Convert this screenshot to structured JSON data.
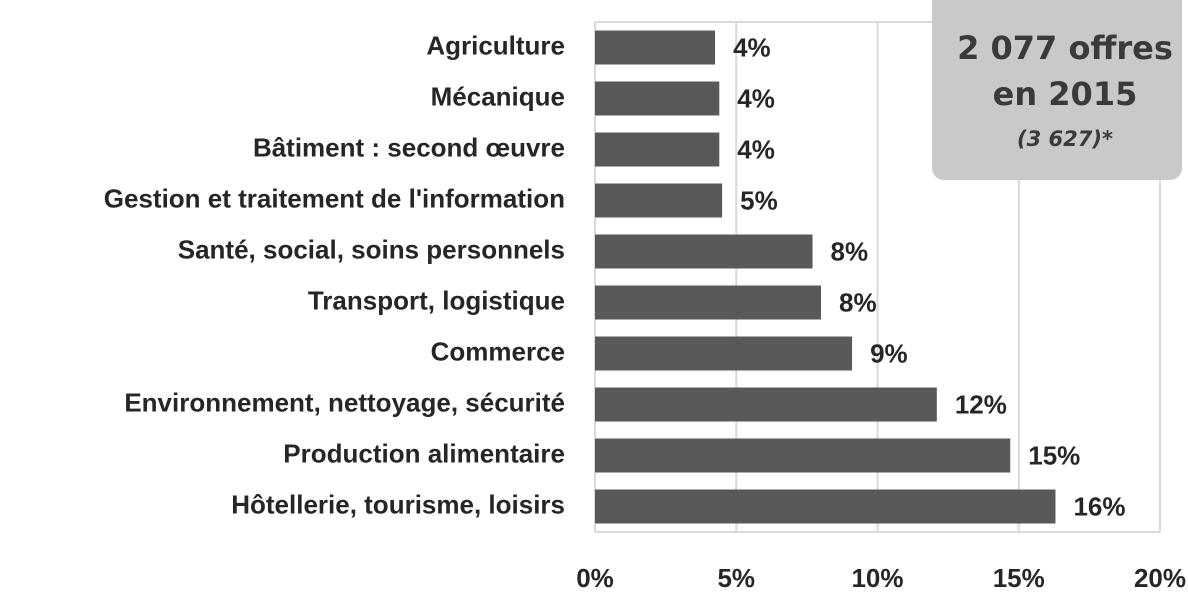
{
  "chart_data": {
    "type": "bar",
    "orientation": "horizontal",
    "categories": [
      "Agriculture",
      "Mécanique",
      "Bâtiment : second œuvre",
      "Gestion et traitement de l'information",
      "Santé, social, soins personnels",
      "Transport, logistique",
      "Commerce",
      "Environnement, nettoyage, sécurité",
      "Production alimentaire",
      "Hôtellerie, tourisme, loisirs"
    ],
    "values": [
      4.25,
      4.4,
      4.4,
      4.5,
      7.7,
      8.0,
      9.1,
      12.1,
      14.7,
      16.3
    ],
    "value_labels": [
      "4%",
      "4%",
      "4%",
      "5%",
      "8%",
      "8%",
      "9%",
      "12%",
      "15%",
      "16%"
    ],
    "color": "#595959",
    "xlim": [
      0,
      20
    ],
    "xticks": [
      {
        "value": 0,
        "label": "0%"
      },
      {
        "value": 5,
        "label": "5%"
      },
      {
        "value": 10,
        "label": "10%"
      },
      {
        "value": 15,
        "label": "15%"
      },
      {
        "value": 20,
        "label": "20%"
      }
    ],
    "grid": true,
    "annotation": {
      "lines": [
        "2 077 offres",
        "en 2015"
      ],
      "note": "(3 627)*"
    }
  }
}
